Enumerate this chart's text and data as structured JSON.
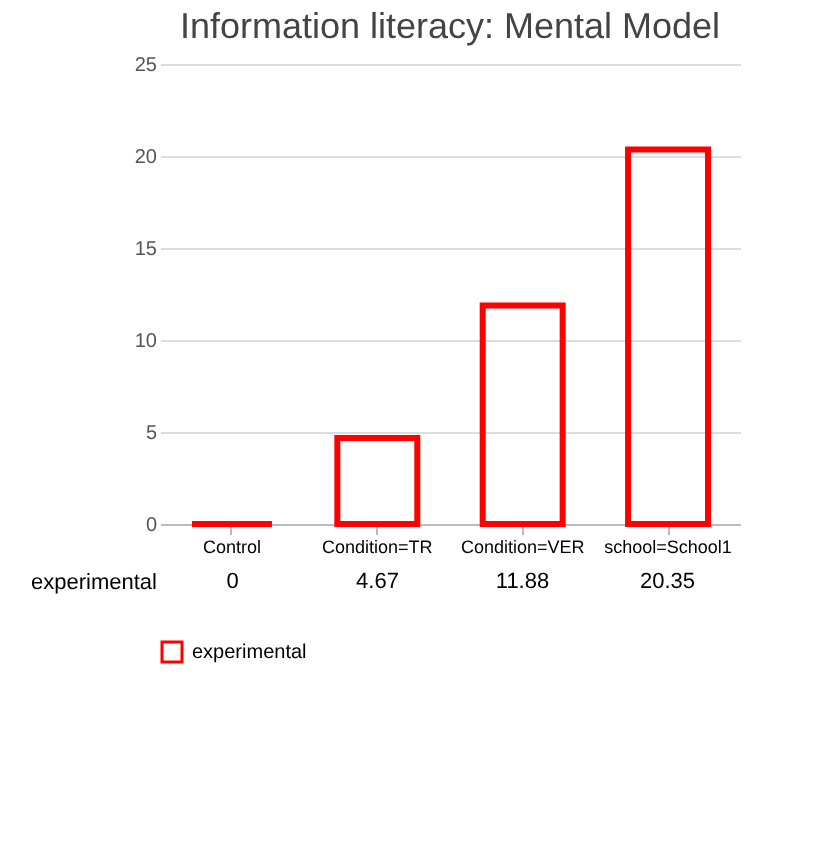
{
  "chart_data": {
    "type": "bar",
    "title": "Information literacy:  Mental Model",
    "categories": [
      "Control",
      "Condition=TR",
      "Condition=VER",
      "school=School1"
    ],
    "series": [
      {
        "name": "experimental",
        "color": "#ff0000",
        "values": [
          0,
          4.67,
          11.88,
          20.35
        ]
      }
    ],
    "ylim": [
      0,
      25
    ],
    "yticks": [
      0,
      5,
      10,
      15,
      20,
      25
    ],
    "grid": "y",
    "legend": "bottom",
    "data_labels": true
  }
}
